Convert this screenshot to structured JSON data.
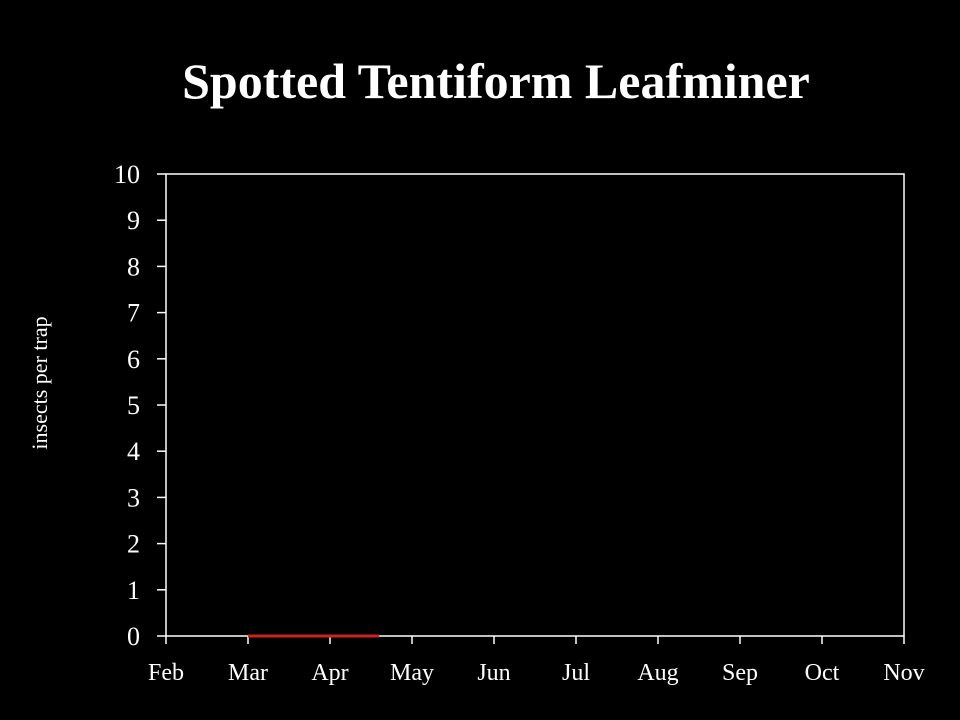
{
  "chart_data": {
    "type": "line",
    "title": "Spotted Tentiform Leafminer",
    "xlabel": "",
    "ylabel": "insects per trap",
    "categories": [
      "Feb",
      "Mar",
      "Apr",
      "May",
      "Jun",
      "Jul",
      "Aug",
      "Sep",
      "Oct",
      "Nov"
    ],
    "ylim": [
      0,
      10
    ],
    "yticks": [
      "0",
      "1",
      "2",
      "3",
      "4",
      "5",
      "6",
      "7",
      "8",
      "9",
      "10"
    ],
    "grid": false,
    "series": [
      {
        "color": "#cc2222",
        "points": [
          {
            "x": "Mar",
            "y": 0
          },
          {
            "x": "Apr",
            "y": 0
          },
          {
            "x": "Apr",
            "y": 0
          }
        ]
      }
    ]
  },
  "colors": {
    "background": "#000000",
    "axis": "#ffffff",
    "text": "#ffffff",
    "series": "#cc2222"
  }
}
